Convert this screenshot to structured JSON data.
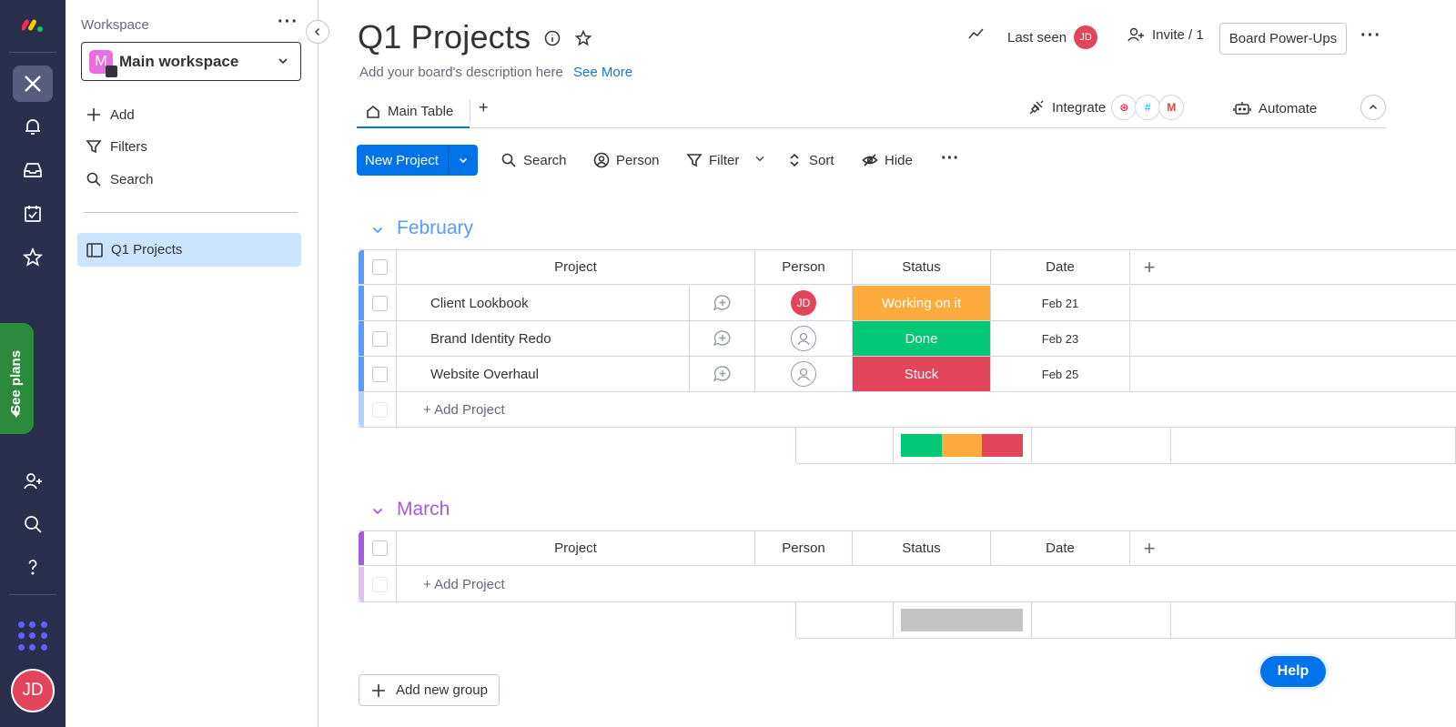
{
  "rail": {
    "see_plans": "See plans",
    "avatar_initials": "JD",
    "icons": [
      "monday-logo-icon",
      "workspace-icon",
      "bell-icon",
      "inbox-icon",
      "calendar-check-icon",
      "star-icon",
      "invite-user-icon",
      "search-icon",
      "help-icon",
      "apps-grid-icon"
    ]
  },
  "sidebar": {
    "label": "Workspace",
    "workspace_badge": "M",
    "workspace_name": "Main workspace",
    "actions": [
      {
        "label": "Add",
        "icon": "plus-icon"
      },
      {
        "label": "Filters",
        "icon": "filter-icon"
      },
      {
        "label": "Search",
        "icon": "search-icon"
      }
    ],
    "boards": [
      {
        "label": "Q1 Projects",
        "icon": "board-icon"
      }
    ]
  },
  "header": {
    "title": "Q1 Projects",
    "description": "Add your board's description here",
    "see_more": "See More",
    "last_seen": "Last seen",
    "last_seen_initials": "JD",
    "invite": "Invite / 1",
    "power_ups": "Board Power-Ups"
  },
  "tabs": {
    "main": "Main Table",
    "add": "+",
    "integrate": "Integrate",
    "automate": "Automate"
  },
  "toolbar": {
    "new_project": "New Project",
    "search": "Search",
    "person": "Person",
    "filter": "Filter",
    "sort": "Sort",
    "hide": "Hide"
  },
  "columns": {
    "project": "Project",
    "person": "Person",
    "status": "Status",
    "date": "Date",
    "add": "+"
  },
  "groups": [
    {
      "name": "February",
      "color": "#579bfc",
      "rows": [
        {
          "project": "Client Lookbook",
          "person": "JD",
          "status": "Working on it",
          "status_color": "#fdab3d",
          "date": "Feb 21"
        },
        {
          "project": "Brand Identity Redo",
          "person": "",
          "status": "Done",
          "status_color": "#00c875",
          "date": "Feb 23"
        },
        {
          "project": "Website Overhaul",
          "person": "",
          "status": "Stuck",
          "status_color": "#e2445c",
          "date": "Feb 25"
        }
      ],
      "add_row": "+ Add Project",
      "status_summary": [
        {
          "color": "#00c875",
          "fraction": 0.333
        },
        {
          "color": "#fdab3d",
          "fraction": 0.333
        },
        {
          "color": "#e2445c",
          "fraction": 0.334
        }
      ]
    },
    {
      "name": "March",
      "color": "#a25ddc",
      "rows": [],
      "add_row": "+ Add Project",
      "status_summary": [
        {
          "color": "#c4c4c4",
          "fraction": 1.0
        }
      ]
    }
  ],
  "footer": {
    "add_group": "Add new group",
    "help": "Help"
  }
}
